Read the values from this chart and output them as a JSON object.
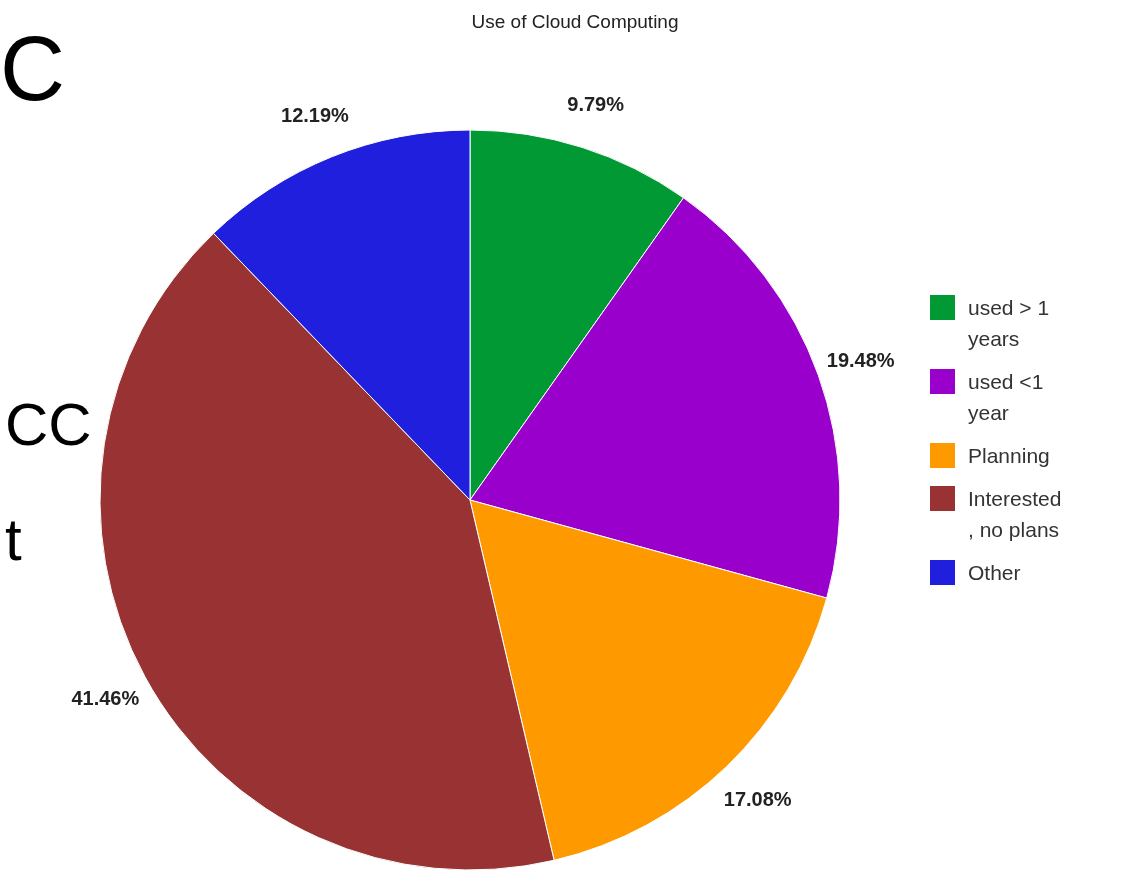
{
  "chart_data": {
    "type": "pie",
    "title": "Use of Cloud Computing",
    "categories": [
      "used > 1 years",
      "used <1 year",
      "Planning",
      "Interested , no plans",
      "Other"
    ],
    "values": [
      9.79,
      19.48,
      17.08,
      41.46,
      12.19
    ],
    "colors": [
      "#009933",
      "#9900cc",
      "#ff9900",
      "#993333",
      "#1f1fdd"
    ],
    "value_labels": [
      "9.79%",
      "19.48%",
      "17.08%",
      "41.46%",
      "12.19%"
    ],
    "legend": "right",
    "annotations": [
      "C",
      "CC",
      "t"
    ]
  }
}
